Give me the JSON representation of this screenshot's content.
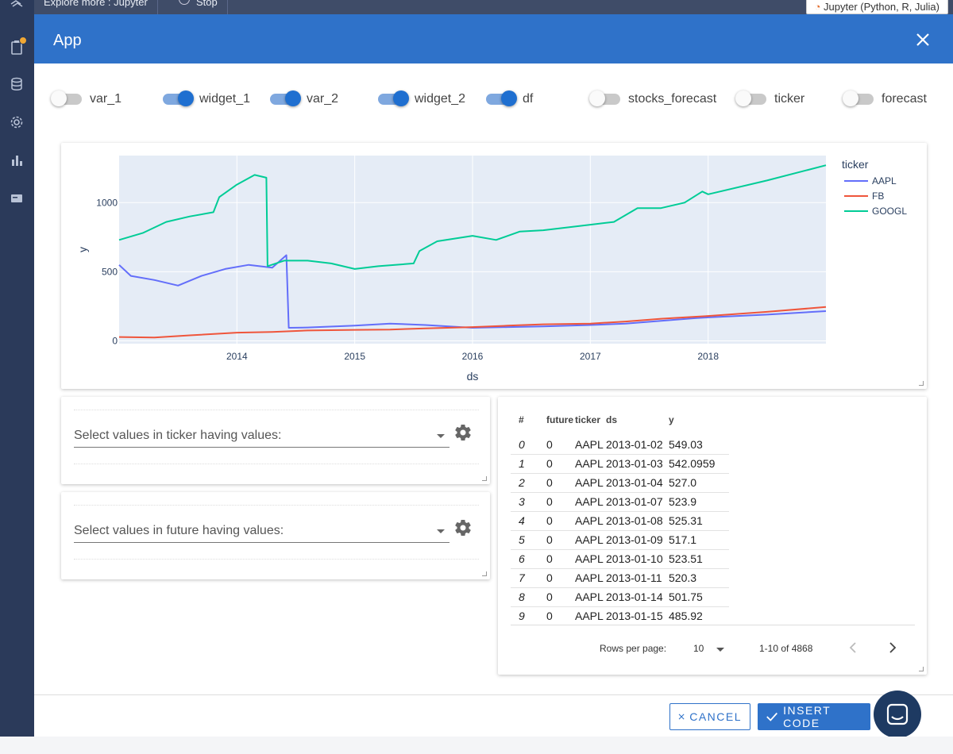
{
  "topbar": {
    "tabs": [
      "Explore more : Jupyter",
      "Stop"
    ],
    "kernel": "Jupyter (Python, R, Julia)"
  },
  "sidebar": {
    "icons": [
      "logo-icon",
      "file-icon",
      "database-icon",
      "gear-icon",
      "bar-chart-icon",
      "card-icon"
    ]
  },
  "dialog": {
    "title": "App"
  },
  "toggles": [
    {
      "label": "var_1",
      "on": false
    },
    {
      "label": "widget_1",
      "on": true
    },
    {
      "label": "var_2",
      "on": true
    },
    {
      "label": "widget_2",
      "on": true
    },
    {
      "label": "df",
      "on": true
    },
    {
      "label": "stocks_forecast",
      "on": false
    },
    {
      "label": "ticker",
      "on": false
    },
    {
      "label": "forecast",
      "on": false
    }
  ],
  "chart_data": {
    "type": "line",
    "xlabel": "ds",
    "ylabel": "y",
    "xlim": [
      2013.0,
      2019.0
    ],
    "ylim": [
      -20,
      1340
    ],
    "xticks": [
      2014,
      2015,
      2016,
      2017,
      2018
    ],
    "yticks": [
      0,
      500,
      1000
    ],
    "legend_title": "ticker",
    "legend_position": "right",
    "grid": true,
    "series": [
      {
        "name": "AAPL",
        "color": "#636efa",
        "x": [
          2013.0,
          2013.1,
          2013.3,
          2013.5,
          2013.7,
          2013.9,
          2014.1,
          2014.3,
          2014.42,
          2014.44,
          2014.6,
          2015.0,
          2015.3,
          2015.6,
          2015.9,
          2016.0,
          2016.3,
          2016.6,
          2017.0,
          2017.3,
          2017.6,
          2017.9,
          2018.0,
          2018.5,
          2019.0
        ],
        "y": [
          549,
          470,
          440,
          400,
          470,
          520,
          550,
          530,
          620,
          95,
          97,
          110,
          125,
          115,
          100,
          95,
          100,
          105,
          115,
          125,
          145,
          165,
          170,
          190,
          215
        ]
      },
      {
        "name": "FB",
        "color": "#ef553b",
        "x": [
          2013.0,
          2013.3,
          2013.6,
          2014.0,
          2014.3,
          2014.6,
          2015.0,
          2015.3,
          2015.6,
          2016.0,
          2016.3,
          2016.6,
          2017.0,
          2017.3,
          2017.6,
          2017.9,
          2018.0,
          2018.5,
          2019.0
        ],
        "y": [
          28,
          25,
          40,
          60,
          65,
          75,
          80,
          82,
          90,
          100,
          110,
          120,
          125,
          140,
          160,
          175,
          180,
          210,
          245
        ]
      },
      {
        "name": "GOOGL",
        "color": "#00cc96",
        "x": [
          2013.0,
          2013.2,
          2013.4,
          2013.6,
          2013.8,
          2013.85,
          2014.0,
          2014.15,
          2014.25,
          2014.26,
          2014.4,
          2014.6,
          2014.8,
          2015.0,
          2015.2,
          2015.5,
          2015.55,
          2015.7,
          2016.0,
          2016.2,
          2016.4,
          2016.6,
          2016.8,
          2017.0,
          2017.2,
          2017.4,
          2017.6,
          2017.8,
          2017.95,
          2018.0,
          2018.5,
          2019.0
        ],
        "y": [
          730,
          780,
          860,
          900,
          930,
          1040,
          1130,
          1200,
          1180,
          540,
          580,
          580,
          560,
          520,
          540,
          560,
          650,
          720,
          760,
          730,
          790,
          800,
          820,
          840,
          860,
          960,
          960,
          1000,
          1080,
          1060,
          1160,
          1270
        ]
      }
    ]
  },
  "filters": [
    {
      "placeholder": "Select values in ticker having values:"
    },
    {
      "placeholder": "Select values in future having values:"
    }
  ],
  "table": {
    "columns": [
      "#",
      "future",
      "ticker",
      "ds",
      "y"
    ],
    "rows": [
      [
        "0",
        "0",
        "AAPL",
        "2013-01-02",
        "549.03"
      ],
      [
        "1",
        "0",
        "AAPL",
        "2013-01-03",
        "542.0959"
      ],
      [
        "2",
        "0",
        "AAPL",
        "2013-01-04",
        "527.0"
      ],
      [
        "3",
        "0",
        "AAPL",
        "2013-01-07",
        "523.9"
      ],
      [
        "4",
        "0",
        "AAPL",
        "2013-01-08",
        "525.31"
      ],
      [
        "5",
        "0",
        "AAPL",
        "2013-01-09",
        "517.1"
      ],
      [
        "6",
        "0",
        "AAPL",
        "2013-01-10",
        "523.51"
      ],
      [
        "7",
        "0",
        "AAPL",
        "2013-01-11",
        "520.3"
      ],
      [
        "8",
        "0",
        "AAPL",
        "2013-01-14",
        "501.75"
      ],
      [
        "9",
        "0",
        "AAPL",
        "2013-01-15",
        "485.92"
      ]
    ],
    "rows_per_page_label": "Rows per page:",
    "rows_per_page": "10",
    "range": "1-10 of 4868"
  },
  "footer": {
    "cancel": "CANCEL",
    "insert": "INSERT CODE"
  }
}
